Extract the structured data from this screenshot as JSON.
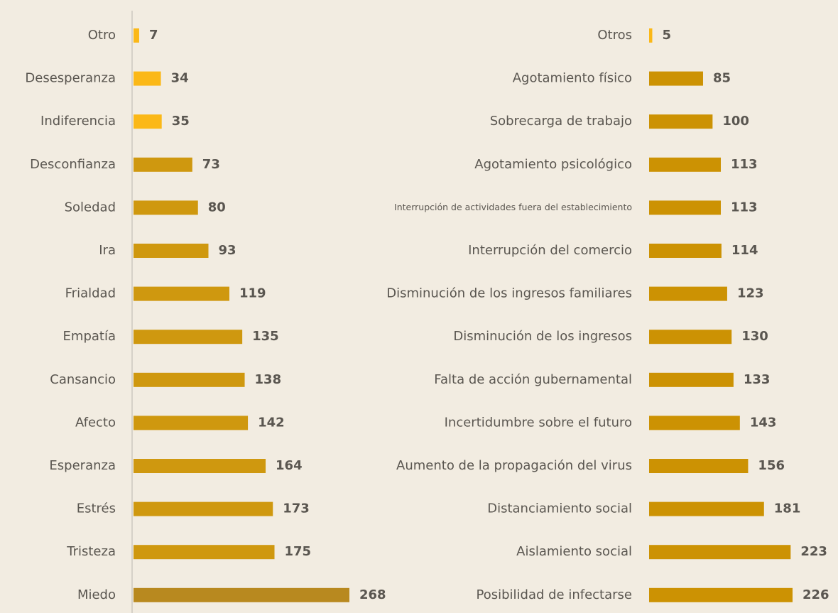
{
  "chart_data": [
    {
      "type": "bar",
      "orientation": "horizontal",
      "categories": [
        "Otro",
        "Desesperanza",
        "Indiferencia",
        "Desconfianza",
        "Soledad",
        "Ira",
        "Frialdad",
        "Empatía",
        "Cansancio",
        "Afecto",
        "Esperanza",
        "Estrés",
        "Tristeza",
        "Miedo"
      ],
      "values": [
        7,
        34,
        35,
        73,
        80,
        93,
        119,
        135,
        138,
        142,
        164,
        173,
        175,
        268
      ],
      "colors": [
        "#fbb817",
        "#fbb817",
        "#fbb817",
        "#cf980f",
        "#cf980f",
        "#cf980f",
        "#cf980f",
        "#cf980f",
        "#cf980f",
        "#cf980f",
        "#cf980f",
        "#cf980f",
        "#cf980f",
        "#b8891f"
      ]
    },
    {
      "type": "bar",
      "orientation": "horizontal",
      "categories": [
        "Otros",
        "Agotamiento físico",
        "Sobrecarga de trabajo",
        "Agotamiento psicológico",
        "Interrupción de actividades fuera del establecimiento",
        "Interrupción del comercio",
        "Disminución de los ingresos familiares",
        "Disminución de los ingresos",
        "Falta de acción gubernamental",
        "Incertidumbre sobre el futuro",
        "Aumento de la propagación del virus",
        "Distanciamiento social",
        "Aislamiento social",
        "Posibilidad de infectarse"
      ],
      "values": [
        5,
        85,
        100,
        113,
        113,
        114,
        123,
        130,
        133,
        143,
        156,
        181,
        223,
        226
      ],
      "colors": [
        "#fbb817",
        "#cc9203",
        "#cc9203",
        "#cc9203",
        "#cc9203",
        "#cc9203",
        "#cc9203",
        "#cc9203",
        "#cc9203",
        "#cc9203",
        "#cc9203",
        "#cc9203",
        "#cc9203",
        "#cc9203"
      ]
    }
  ]
}
